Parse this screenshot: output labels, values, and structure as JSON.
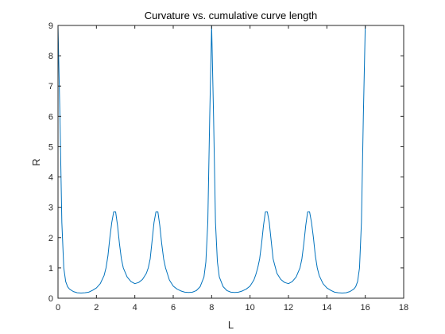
{
  "chart_data": {
    "type": "line",
    "title": "Curvature vs. cumulative curve length",
    "xlabel": "L",
    "ylabel": "R",
    "xlim": [
      0,
      18
    ],
    "ylim": [
      0,
      9
    ],
    "xticks": [
      0,
      2,
      4,
      6,
      8,
      10,
      12,
      14,
      16,
      18
    ],
    "yticks": [
      0,
      1,
      2,
      3,
      4,
      5,
      6,
      7,
      8,
      9
    ],
    "grid": false,
    "series_color": "#0072BD",
    "series": [
      {
        "x": [
          0.0,
          0.1,
          0.2,
          0.3,
          0.4,
          0.5,
          0.6,
          0.8,
          1.0,
          1.2,
          1.4,
          1.6,
          1.8,
          2.0,
          2.2,
          2.4,
          2.5,
          2.6,
          2.7,
          2.8,
          2.9,
          3.0,
          3.1,
          3.2,
          3.3,
          3.4,
          3.6,
          3.8,
          4.0,
          4.2,
          4.4,
          4.6,
          4.7,
          4.8,
          4.9,
          5.0,
          5.1,
          5.2,
          5.3,
          5.4,
          5.5,
          5.6,
          5.8,
          6.0,
          6.2,
          6.4,
          6.6,
          6.8,
          7.0,
          7.2,
          7.4,
          7.6,
          7.7,
          7.8,
          7.9,
          8.0,
          8.1,
          8.2,
          8.3,
          8.4,
          8.6,
          8.8,
          9.0,
          9.2,
          9.4,
          9.6,
          9.8,
          10.0,
          10.2,
          10.3,
          10.4,
          10.5,
          10.6,
          10.7,
          10.8,
          10.9,
          11.0,
          11.1,
          11.2,
          11.4,
          11.6,
          11.8,
          12.0,
          12.2,
          12.4,
          12.5,
          12.6,
          12.7,
          12.8,
          12.9,
          13.0,
          13.1,
          13.2,
          13.3,
          13.4,
          13.5,
          13.6,
          13.8,
          14.0,
          14.2,
          14.4,
          14.6,
          14.8,
          15.0,
          15.2,
          15.4,
          15.5,
          15.6,
          15.7,
          15.8,
          15.9,
          16.0
        ],
        "y": [
          9.0,
          6.0,
          2.5,
          1.0,
          0.55,
          0.38,
          0.3,
          0.22,
          0.18,
          0.17,
          0.18,
          0.2,
          0.26,
          0.34,
          0.48,
          0.75,
          1.0,
          1.4,
          2.0,
          2.5,
          2.85,
          2.85,
          2.4,
          1.8,
          1.3,
          1.0,
          0.7,
          0.55,
          0.48,
          0.52,
          0.62,
          0.82,
          1.0,
          1.3,
          1.9,
          2.5,
          2.85,
          2.85,
          2.4,
          1.8,
          1.3,
          1.0,
          0.6,
          0.4,
          0.3,
          0.24,
          0.2,
          0.19,
          0.2,
          0.25,
          0.38,
          0.7,
          1.2,
          2.5,
          6.0,
          9.0,
          6.0,
          2.5,
          1.2,
          0.7,
          0.38,
          0.25,
          0.2,
          0.19,
          0.2,
          0.24,
          0.3,
          0.4,
          0.6,
          0.78,
          1.0,
          1.3,
          1.8,
          2.4,
          2.85,
          2.85,
          2.5,
          1.9,
          1.3,
          0.82,
          0.62,
          0.52,
          0.48,
          0.55,
          0.7,
          0.85,
          1.0,
          1.3,
          1.8,
          2.4,
          2.85,
          2.85,
          2.5,
          2.0,
          1.4,
          1.0,
          0.75,
          0.48,
          0.34,
          0.26,
          0.2,
          0.18,
          0.17,
          0.18,
          0.22,
          0.3,
          0.38,
          0.55,
          1.0,
          2.5,
          6.0,
          9.0
        ]
      }
    ]
  }
}
